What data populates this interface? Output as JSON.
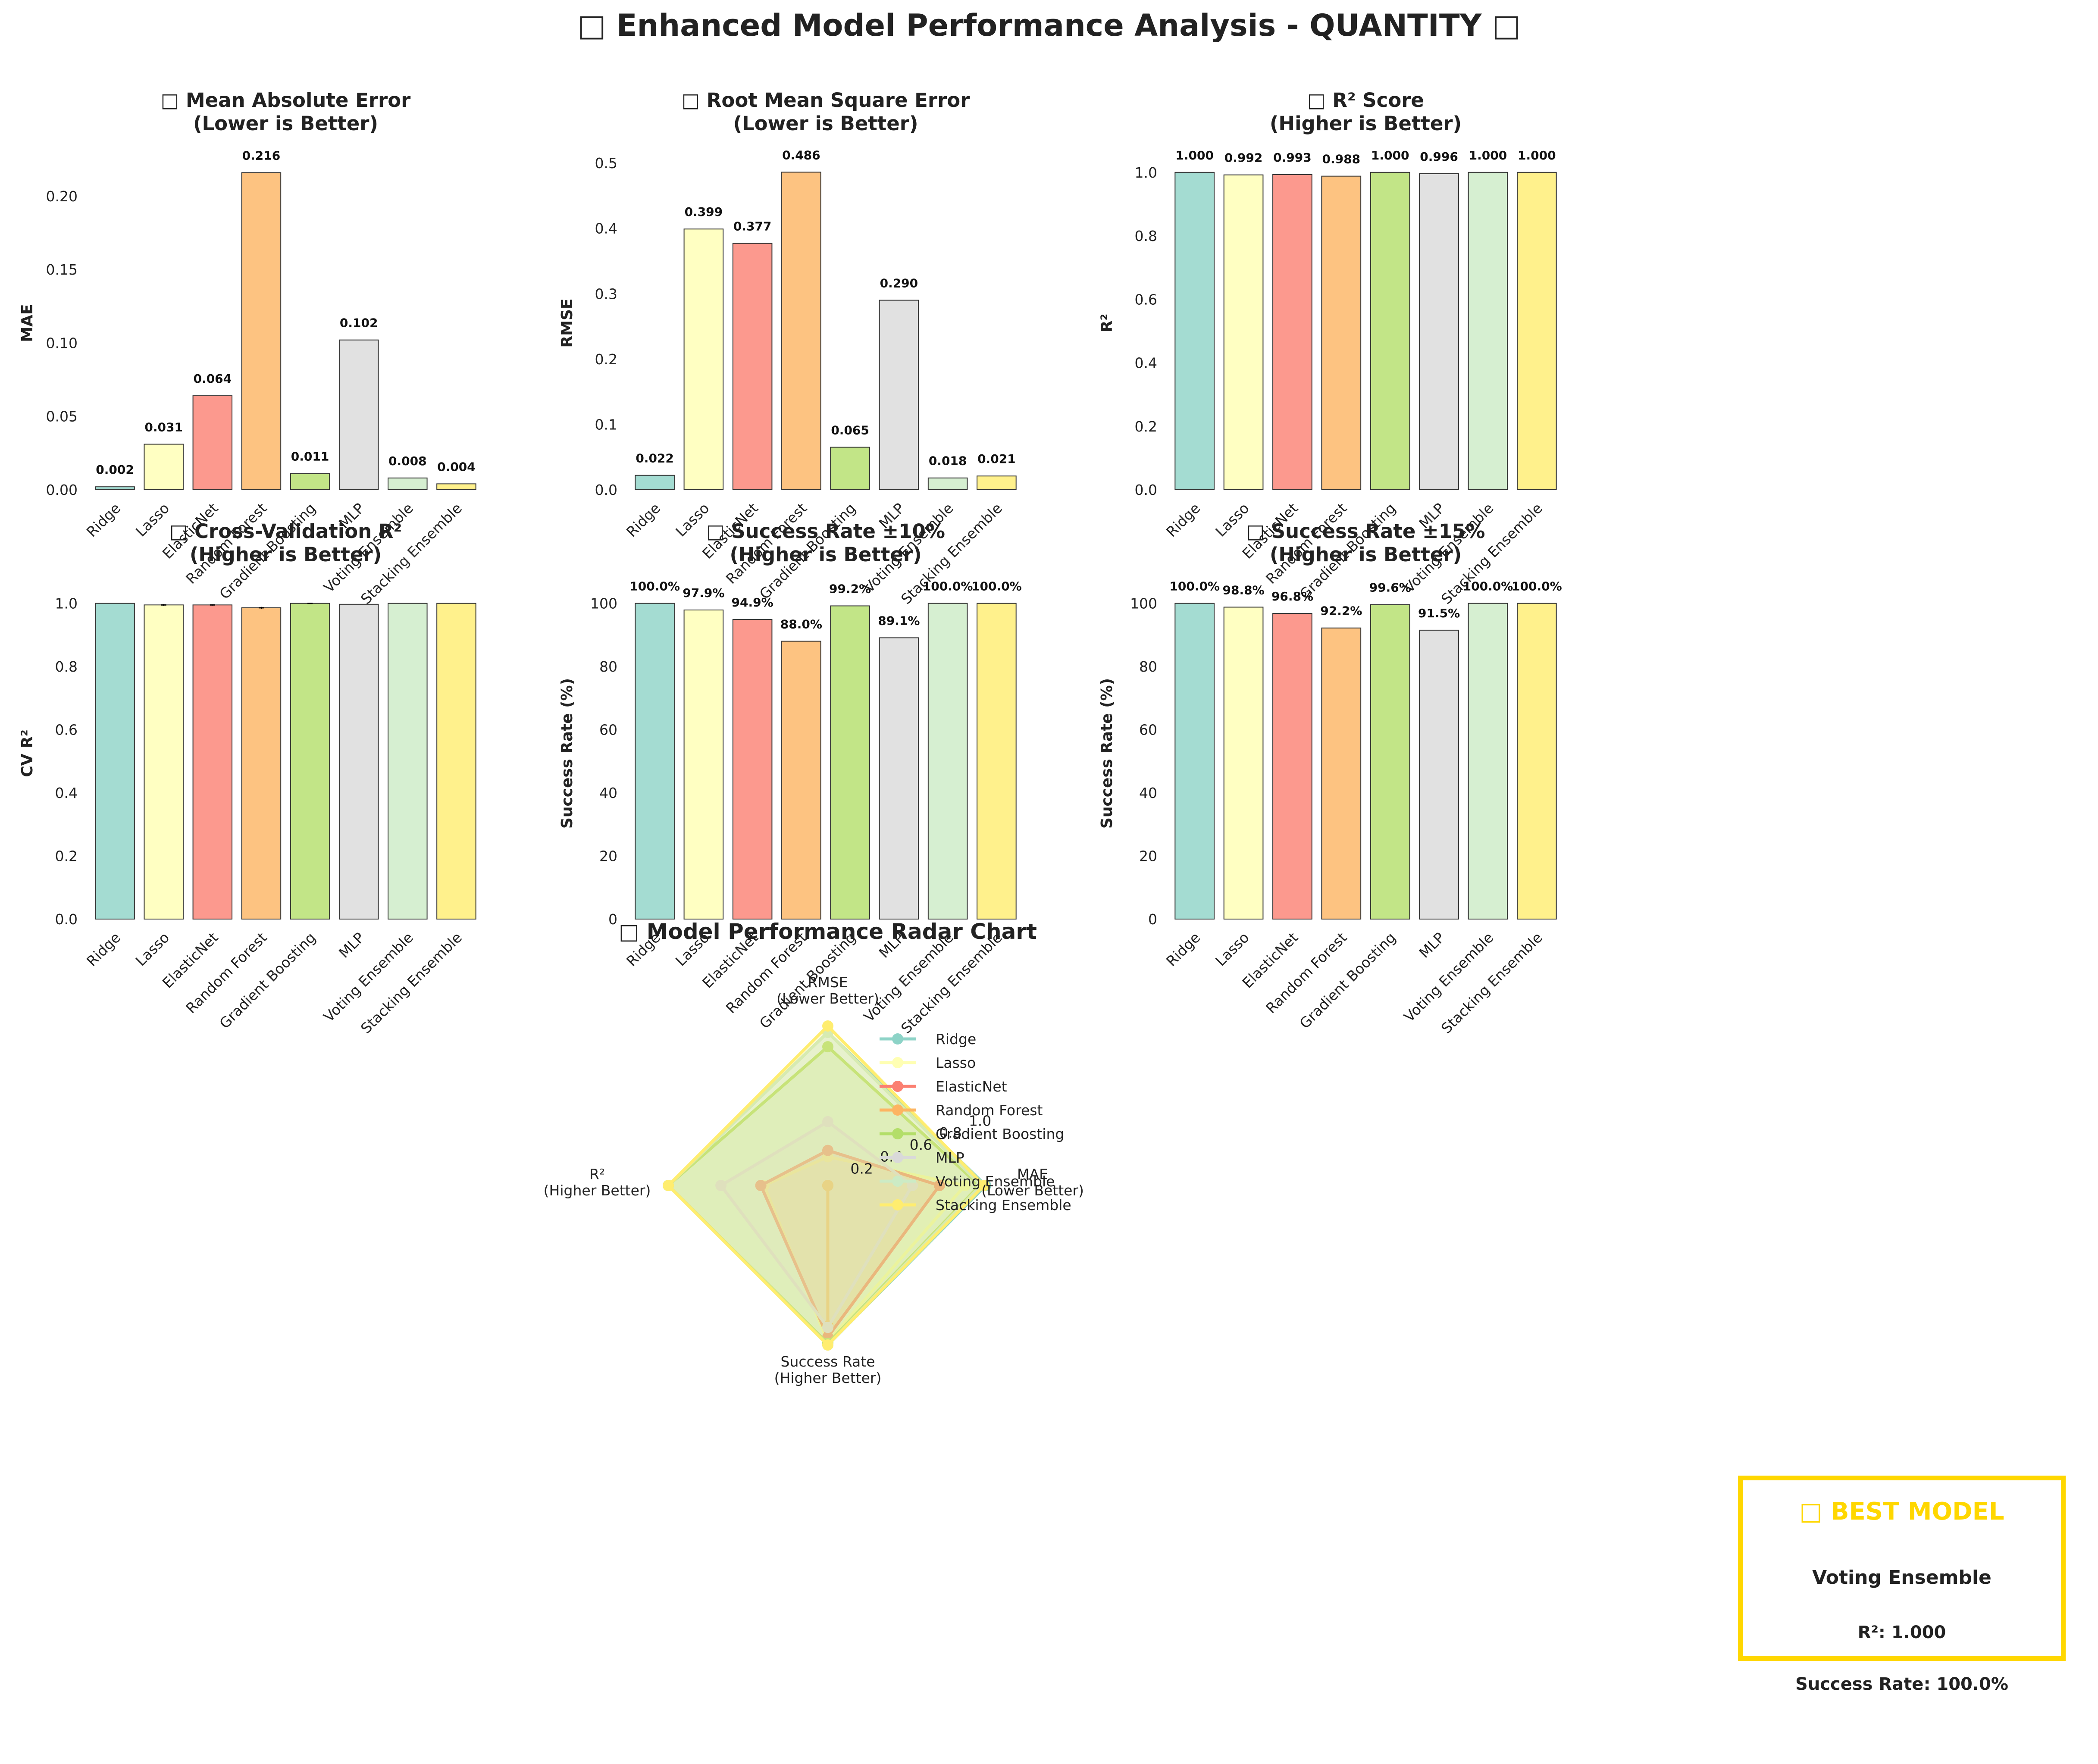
{
  "figure_title": "□ Enhanced Model Performance Analysis - QUANTITY □",
  "models": [
    "Ridge",
    "Lasso",
    "ElasticNet",
    "Random Forest",
    "Gradient Boosting",
    "MLP",
    "Voting Ensemble",
    "Stacking Ensemble"
  ],
  "colors": [
    "#8DD3C7",
    "#FFFFB3",
    "#FB8072",
    "#FDB462",
    "#B3DE69",
    "#D9D9D9",
    "#CCEBC5",
    "#FFED6F"
  ],
  "chart_data": [
    {
      "type": "bar",
      "title": "□ Mean Absolute Error\n(Lower is Better)",
      "ylabel": "MAE",
      "ylim": [
        0,
        0.227
      ],
      "yticks": [
        0.0,
        0.05,
        0.1,
        0.15,
        0.2
      ],
      "ytick_labels": [
        "0.00",
        "0.05",
        "0.10",
        "0.15",
        "0.20"
      ],
      "values": [
        0.002,
        0.031,
        0.064,
        0.216,
        0.011,
        0.102,
        0.008,
        0.004
      ],
      "value_labels": [
        "0.002",
        "0.031",
        "0.064",
        "0.216",
        "0.011",
        "0.102",
        "0.008",
        "0.004"
      ]
    },
    {
      "type": "bar",
      "title": "□ Root Mean Square Error\n(Lower is Better)",
      "ylabel": "RMSE",
      "ylim": [
        0,
        0.51
      ],
      "yticks": [
        0.0,
        0.1,
        0.2,
        0.3,
        0.4,
        0.5
      ],
      "ytick_labels": [
        "0.0",
        "0.1",
        "0.2",
        "0.3",
        "0.4",
        "0.5"
      ],
      "values": [
        0.022,
        0.399,
        0.377,
        0.486,
        0.065,
        0.29,
        0.018,
        0.021
      ],
      "value_labels": [
        "0.022",
        "0.399",
        "0.377",
        "0.486",
        "0.065",
        "0.290",
        "0.018",
        "0.021"
      ]
    },
    {
      "type": "bar",
      "title": "□ R² Score\n(Higher is Better)",
      "ylabel": "R²",
      "ylim": [
        0,
        1.05
      ],
      "yticks": [
        0.0,
        0.2,
        0.4,
        0.6,
        0.8,
        1.0
      ],
      "ytick_labels": [
        "0.0",
        "0.2",
        "0.4",
        "0.6",
        "0.8",
        "1.0"
      ],
      "values": [
        1.0,
        0.992,
        0.993,
        0.988,
        1.0,
        0.996,
        1.0,
        1.0
      ],
      "value_labels": [
        "1.000",
        "0.992",
        "0.993",
        "0.988",
        "1.000",
        "0.996",
        "1.000",
        "1.000"
      ]
    },
    {
      "type": "bar",
      "title": "□ Cross-Validation R²\n(Higher is Better)",
      "ylabel": "CV R²",
      "ylim": [
        0,
        1.05
      ],
      "yticks": [
        0.0,
        0.2,
        0.4,
        0.6,
        0.8,
        1.0
      ],
      "ytick_labels": [
        "0.0",
        "0.2",
        "0.4",
        "0.6",
        "0.8",
        "1.0"
      ],
      "values": [
        1.0,
        0.995,
        0.995,
        0.986,
        1.0,
        0.997,
        1.0,
        1.0
      ],
      "error": [
        0.0,
        0.003,
        0.002,
        0.003,
        0.002,
        0.0,
        0.0,
        0.0
      ],
      "value_labels": []
    },
    {
      "type": "bar",
      "title": "□ Success Rate ±10%\n(Higher is Better)",
      "ylabel": "Success Rate (%)",
      "ylim": [
        0,
        105
      ],
      "yticks": [
        0,
        20,
        40,
        60,
        80,
        100
      ],
      "ytick_labels": [
        "0",
        "20",
        "40",
        "60",
        "80",
        "100"
      ],
      "values": [
        100.0,
        97.9,
        94.9,
        88.0,
        99.2,
        89.1,
        100.0,
        100.0
      ],
      "value_labels": [
        "100.0%",
        "97.9%",
        "94.9%",
        "88.0%",
        "99.2%",
        "89.1%",
        "100.0%",
        "100.0%"
      ]
    },
    {
      "type": "bar",
      "title": "□ Success Rate ±15%\n(Higher is Better)",
      "ylabel": "Success Rate (%)",
      "ylim": [
        0,
        105
      ],
      "yticks": [
        0,
        20,
        40,
        60,
        80,
        100
      ],
      "ytick_labels": [
        "0",
        "20",
        "40",
        "60",
        "80",
        "100"
      ],
      "values": [
        100.0,
        98.8,
        96.8,
        92.2,
        99.6,
        91.5,
        100.0,
        100.0
      ],
      "value_labels": [
        "100.0%",
        "98.8%",
        "96.8%",
        "92.2%",
        "99.6%",
        "91.5%",
        "100.0%",
        "100.0%"
      ]
    },
    {
      "type": "radar",
      "title": "□ Model Performance Radar Chart",
      "axes": [
        "RMSE\n(Lower Better)",
        "MAE\n(Lower Better)",
        "Success Rate\n(Higher Better)",
        "R²\n(Higher Better)"
      ],
      "radial_ticks": [
        0.2,
        0.4,
        0.6,
        0.8,
        1.0
      ],
      "radial_tick_labels": [
        "0.2",
        "0.4",
        "0.6",
        "0.8",
        "1.0"
      ],
      "rlim": [
        0,
        1.0
      ],
      "series": [
        {
          "name": "Ridge",
          "values": [
            0.96,
            0.99,
            1.0,
            1.0
          ]
        },
        {
          "name": "Lasso",
          "values": [
            0.18,
            0.86,
            0.98,
            0.4
          ]
        },
        {
          "name": "ElasticNet",
          "values": [
            0.22,
            0.7,
            0.95,
            0.42
          ]
        },
        {
          "name": "Random Forest",
          "values": [
            0.0,
            0.0,
            0.88,
            0.0
          ]
        },
        {
          "name": "Gradient Boosting",
          "values": [
            0.87,
            0.95,
            0.99,
            1.0
          ]
        },
        {
          "name": "MLP",
          "values": [
            0.4,
            0.53,
            0.89,
            0.67
          ]
        },
        {
          "name": "Voting Ensemble",
          "values": [
            0.96,
            0.96,
            1.0,
            1.0
          ]
        },
        {
          "name": "Stacking Ensemble",
          "values": [
            1.0,
            0.98,
            1.0,
            1.0
          ]
        }
      ]
    }
  ],
  "best_model": {
    "heading": "□ BEST MODEL",
    "name": "Voting Ensemble",
    "r2_text": "R²: 1.000",
    "success_text": "Success Rate: 100.0%"
  }
}
